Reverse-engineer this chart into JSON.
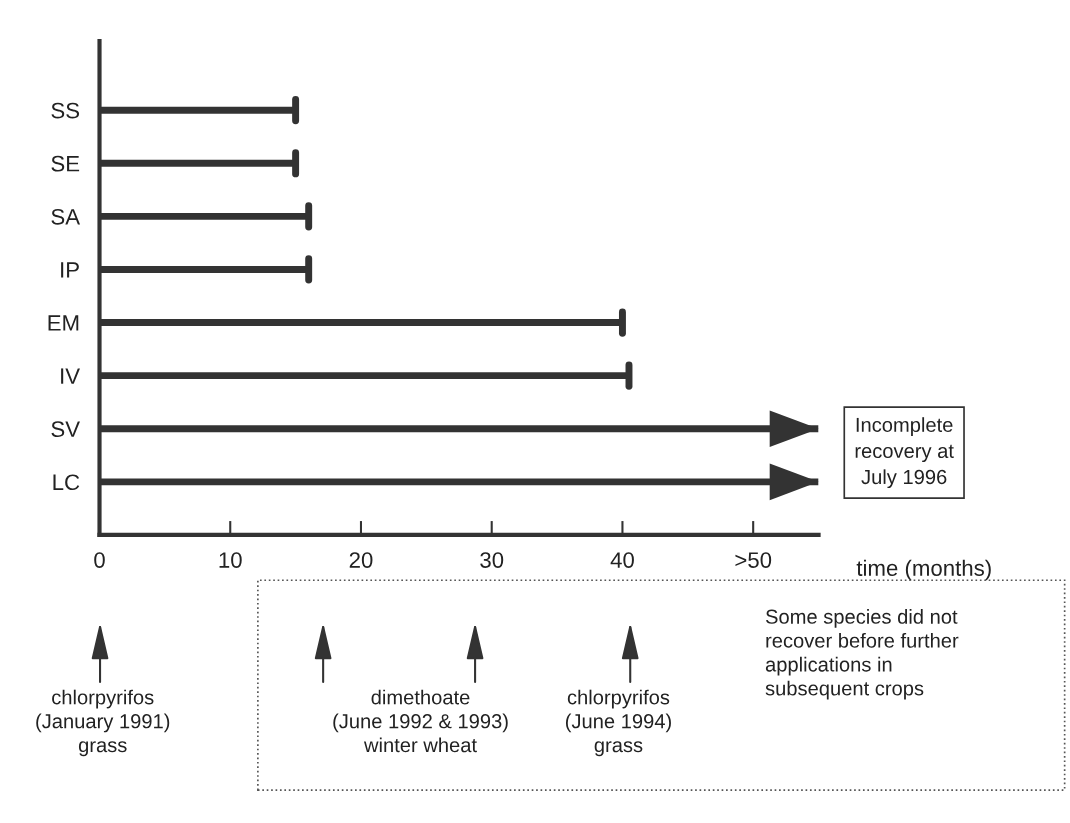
{
  "chart_data": {
    "type": "bar",
    "orientation": "horizontal",
    "categories": [
      "SS",
      "SE",
      "SA",
      "IP",
      "EM",
      "IV",
      "SV",
      "LC"
    ],
    "values": [
      15,
      15,
      16,
      16,
      40,
      40.5,
      55,
      55
    ],
    "color": "#333333",
    "xlim": [
      0,
      55
    ],
    "xticks": [
      0,
      10,
      20,
      30,
      40,
      {
        "value": 50,
        "label": ">50"
      }
    ],
    "xlabel": "time (months)",
    "grid": false,
    "annotations": [
      {
        "text": "Incomplete\nrecovery at\nJuly 1996"
      },
      "Some species did not\nrecover before further\napplications in\nsubsequent crops",
      "chlorpyrifos\n(January 1991)\ngrass",
      "dimethoate\n(June 1992 & 1993)\nwinter wheat",
      "chlorpyrifos\n(June 1994)\ngrass"
    ]
  }
}
